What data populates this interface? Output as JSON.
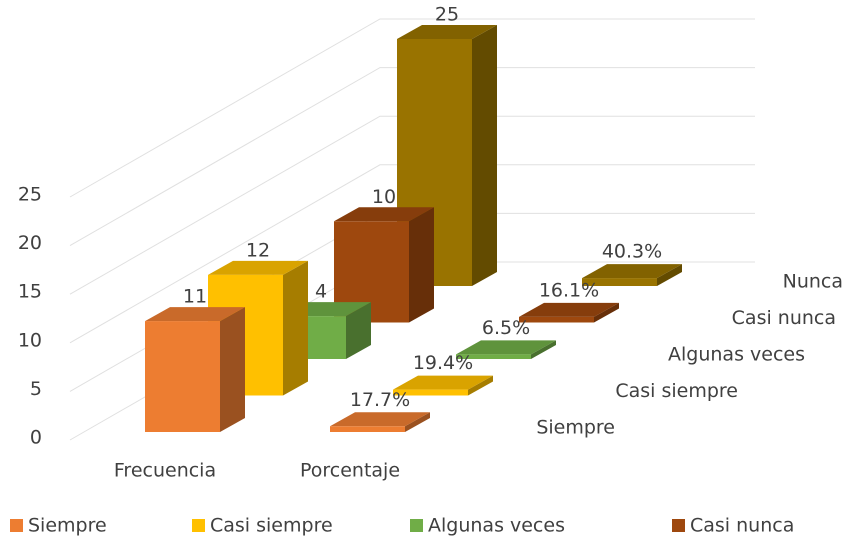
{
  "chart_data": {
    "type": "bar3d",
    "categories": [
      "Frecuencia",
      "Porcentaje"
    ],
    "series": [
      {
        "name": "Siempre",
        "color": "#ed7d31",
        "values": [
          11,
          0.177
        ],
        "value_labels": [
          "11",
          "17.7%"
        ]
      },
      {
        "name": "Casi siempre",
        "color": "#ffc000",
        "values": [
          12,
          0.194
        ],
        "value_labels": [
          "12",
          "19.4%"
        ]
      },
      {
        "name": "Algunas veces",
        "color": "#70ad47",
        "values": [
          4,
          0.065
        ],
        "value_labels": [
          "4",
          "6.5%"
        ]
      },
      {
        "name": "Casi nunca",
        "color": "#9e480e",
        "values": [
          10,
          0.161
        ],
        "value_labels": [
          "10",
          "16.1%"
        ]
      },
      {
        "name": "Nunca",
        "color": "#997300",
        "values": [
          25,
          0.403
        ],
        "value_labels": [
          "25",
          "40.3%"
        ]
      }
    ],
    "legend_entries": 4,
    "ylim": [
      0,
      25
    ],
    "yticks": [
      0,
      5,
      10,
      15,
      20,
      25
    ],
    "grid": true
  }
}
